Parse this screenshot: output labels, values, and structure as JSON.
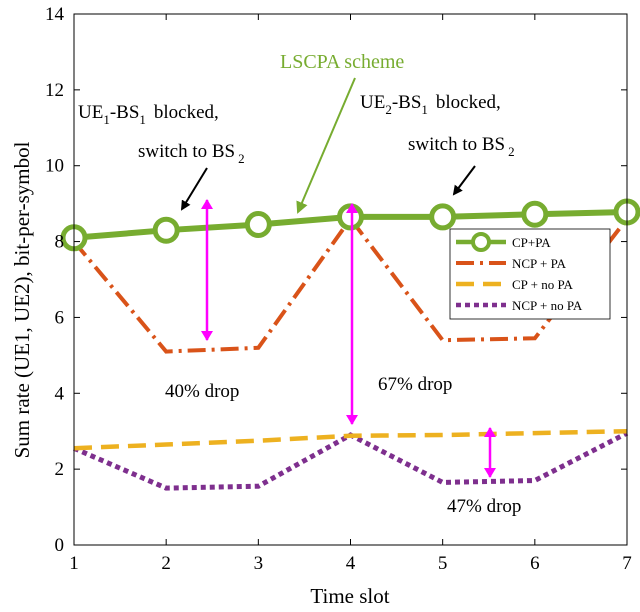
{
  "chart_data": {
    "type": "line",
    "xlabel": "Time slot",
    "ylabel": "Sum rate (UE1, UE2), bit-per-symbol",
    "xlim": [
      1,
      7
    ],
    "ylim": [
      0,
      14
    ],
    "xticks": [
      1,
      2,
      3,
      4,
      5,
      6,
      7
    ],
    "yticks": [
      0,
      2,
      4,
      6,
      8,
      10,
      12,
      14
    ],
    "grid": false,
    "legend_position": "right",
    "series": [
      {
        "name": "CP+PA",
        "color": "#77ac30",
        "style": "solid-circle-markers",
        "x": [
          1,
          2,
          3,
          4,
          5,
          6,
          7
        ],
        "y": [
          8.1,
          8.3,
          8.45,
          8.65,
          8.65,
          8.72,
          8.78
        ]
      },
      {
        "name": "NCP + PA",
        "color": "#d95319",
        "style": "dash-dot",
        "x": [
          1,
          2,
          3,
          4,
          5,
          6,
          7
        ],
        "y": [
          8.0,
          5.1,
          5.2,
          8.6,
          5.4,
          5.45,
          8.6
        ]
      },
      {
        "name": "CP + no PA",
        "color": "#edb120",
        "style": "dashed",
        "x": [
          1,
          2,
          3,
          4,
          5,
          6,
          7
        ],
        "y": [
          2.55,
          2.65,
          2.75,
          2.88,
          2.9,
          2.95,
          3.0
        ]
      },
      {
        "name": "NCP + no PA",
        "color": "#7e2f8e",
        "style": "dotted",
        "x": [
          1,
          2,
          3,
          4,
          5,
          6,
          7
        ],
        "y": [
          2.55,
          1.5,
          1.55,
          2.9,
          1.65,
          1.7,
          2.95
        ]
      }
    ],
    "annotations": {
      "scheme_label": "LSCPA scheme",
      "ann1_line1_a": "UE",
      "ann1_line1_sub1": "1",
      "ann1_line1_b": "-BS",
      "ann1_line1_sub2": "1",
      "ann1_line1_c": "blocked,",
      "ann1_line2_a": "switch to BS",
      "ann1_line2_sub": "2",
      "ann2_line1_a": "UE",
      "ann2_line1_sub1": "2",
      "ann2_line1_b": "-BS",
      "ann2_line1_sub2": "1",
      "ann2_line1_c": "blocked,",
      "ann2_line2_a": "switch to BS",
      "ann2_line2_sub": "2",
      "drop1": "40% drop",
      "drop2": "67% drop",
      "drop3": "47% drop"
    },
    "colors": {
      "arrow_magenta": "#ff00ff",
      "arrow_green": "#77ac30",
      "arrow_black": "#000000"
    }
  }
}
